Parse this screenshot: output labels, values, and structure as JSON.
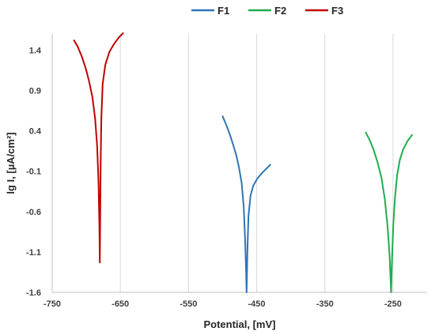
{
  "chart_data": {
    "type": "line",
    "title": "",
    "xlabel": "Potential,  [mV]",
    "ylabel": "lg I, [µA/cm²]",
    "xlim": [
      -750,
      -200
    ],
    "ylim": [
      -1.6,
      1.6
    ],
    "x_ticks": [
      -750,
      -650,
      -550,
      -450,
      -350,
      -250
    ],
    "y_ticks": [
      1.4,
      0.9,
      0.4,
      -0.1,
      -0.6,
      -1.1,
      -1.6
    ],
    "x_tick_labels": [
      "-750",
      "-650",
      "-550",
      "-450",
      "-350",
      "-250"
    ],
    "y_tick_labels": [
      "1.4",
      "0.9",
      "0.4",
      "-0.1",
      "-0.6",
      "-1.1",
      "-1.6"
    ],
    "grid": "vertical",
    "legend_position": "top",
    "series": [
      {
        "name": "F1",
        "color": "#2E75B6",
        "points": [
          [
            -500,
            0.58
          ],
          [
            -495,
            0.48
          ],
          [
            -490,
            0.37
          ],
          [
            -485,
            0.24
          ],
          [
            -480,
            0.1
          ],
          [
            -476,
            -0.05
          ],
          [
            -472,
            -0.25
          ],
          [
            -469,
            -0.55
          ],
          [
            -467,
            -0.95
          ],
          [
            -465.5,
            -1.35
          ],
          [
            -464.8,
            -1.6
          ],
          [
            -463.5,
            -1.05
          ],
          [
            -462,
            -0.65
          ],
          [
            -459,
            -0.4
          ],
          [
            -455,
            -0.28
          ],
          [
            -449,
            -0.19
          ],
          [
            -442,
            -0.12
          ],
          [
            -436,
            -0.07
          ],
          [
            -430,
            -0.02
          ]
        ]
      },
      {
        "name": "F2",
        "color": "#1FAD4E",
        "points": [
          [
            -290,
            0.38
          ],
          [
            -285,
            0.3
          ],
          [
            -279,
            0.18
          ],
          [
            -273,
            0.02
          ],
          [
            -267,
            -0.18
          ],
          [
            -262,
            -0.45
          ],
          [
            -258,
            -0.78
          ],
          [
            -255,
            -1.15
          ],
          [
            -253.5,
            -1.45
          ],
          [
            -252.8,
            -1.6
          ],
          [
            -251.5,
            -1.2
          ],
          [
            -249.5,
            -0.75
          ],
          [
            -247,
            -0.42
          ],
          [
            -244,
            -0.15
          ],
          [
            -240,
            0.04
          ],
          [
            -235,
            0.17
          ],
          [
            -229,
            0.27
          ],
          [
            -222,
            0.35
          ]
        ]
      },
      {
        "name": "F3",
        "color": "#C00000",
        "points": [
          [
            -718,
            1.52
          ],
          [
            -713,
            1.45
          ],
          [
            -707,
            1.33
          ],
          [
            -701,
            1.18
          ],
          [
            -696,
            1.02
          ],
          [
            -691,
            0.82
          ],
          [
            -687,
            0.55
          ],
          [
            -684,
            0.2
          ],
          [
            -682,
            -0.25
          ],
          [
            -680.8,
            -0.75
          ],
          [
            -680.2,
            -1.23
          ],
          [
            -679.6,
            -0.65
          ],
          [
            -679,
            -0.05
          ],
          [
            -678,
            0.55
          ],
          [
            -676,
            0.98
          ],
          [
            -672,
            1.22
          ],
          [
            -666,
            1.38
          ],
          [
            -659,
            1.48
          ],
          [
            -652,
            1.56
          ],
          [
            -646,
            1.61
          ]
        ]
      }
    ]
  }
}
